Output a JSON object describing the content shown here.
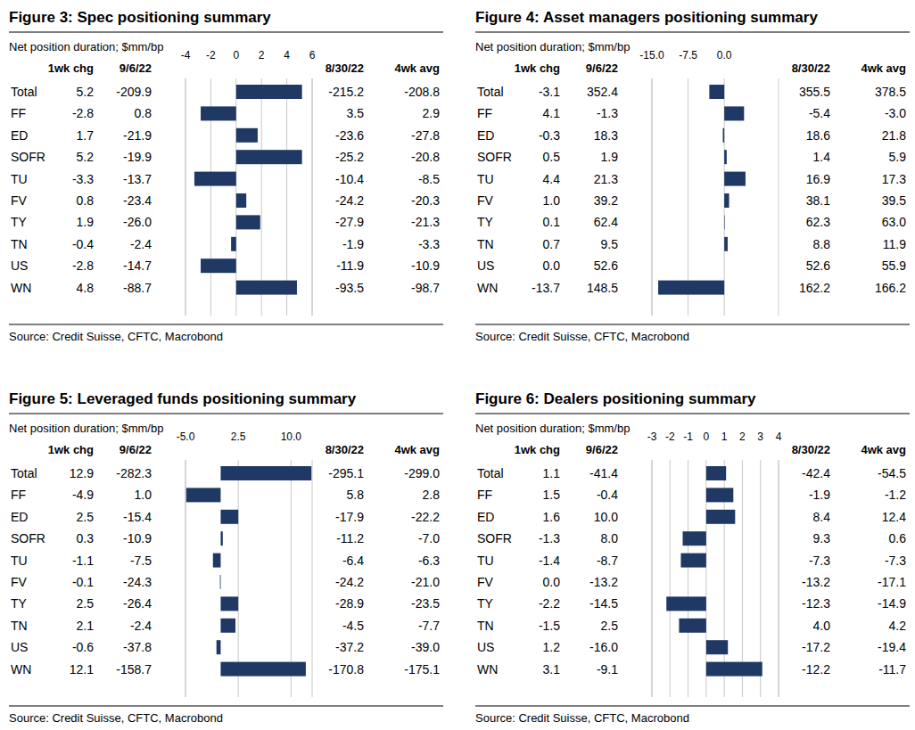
{
  "chart_data": [
    {
      "type": "bar",
      "orientation": "horizontal",
      "title": "Figure 3: Spec positioning summary",
      "subtitle": "Net position duration; $mm/bp",
      "source": "Source: Credit Suisse, CFTC, Macrobond",
      "value_header": "1wk chg",
      "color": "#203864",
      "grid": true,
      "categories": [
        "Total",
        "FF",
        "ED",
        "SOFR",
        "TU",
        "FV",
        "TY",
        "TN",
        "US",
        "WN"
      ],
      "values": [
        5.2,
        -2.8,
        1.7,
        5.2,
        -3.3,
        0.8,
        1.9,
        -0.4,
        -2.8,
        4.8
      ],
      "xlim": [
        -4,
        6
      ],
      "xticks": [
        -4,
        -2,
        0,
        2,
        4,
        6
      ],
      "columns": [
        {
          "name": "9/6/22",
          "values": [
            -209.9,
            0.8,
            -21.9,
            -19.9,
            -13.7,
            -23.4,
            -26.0,
            -2.4,
            -14.7,
            -88.7
          ]
        },
        {
          "name": "8/30/22",
          "values": [
            -215.2,
            3.5,
            -23.6,
            -25.2,
            -10.4,
            -24.2,
            -27.9,
            -1.9,
            -11.9,
            -93.5
          ]
        },
        {
          "name": "4wk avg",
          "values": [
            -208.8,
            2.9,
            -27.8,
            -20.8,
            -8.5,
            -20.3,
            -21.3,
            -3.3,
            -10.9,
            -98.7
          ]
        }
      ]
    },
    {
      "type": "bar",
      "orientation": "horizontal",
      "title": "Figure 4: Asset managers positioning summary",
      "subtitle": "Net position duration; $mm/bp",
      "source": "Source: Credit Suisse, CFTC, Macrobond",
      "value_header": "1wk chg",
      "color": "#203864",
      "grid": true,
      "categories": [
        "Total",
        "FF",
        "ED",
        "SOFR",
        "TU",
        "FV",
        "TY",
        "TN",
        "US",
        "WN"
      ],
      "values": [
        -3.1,
        4.1,
        -0.3,
        0.5,
        4.4,
        1.0,
        0.1,
        0.7,
        0.0,
        -13.7
      ],
      "xlim": [
        -15,
        11.25
      ],
      "xticks": [
        {
          "value": -15,
          "label": "-15.0"
        },
        {
          "value": -7.5,
          "label": "-7.5"
        },
        {
          "value": 0,
          "label": "0.0"
        }
      ],
      "columns": [
        {
          "name": "9/6/22",
          "values": [
            352.4,
            -1.3,
            18.3,
            1.9,
            21.3,
            39.2,
            62.4,
            9.5,
            52.6,
            148.5
          ]
        },
        {
          "name": "8/30/22",
          "values": [
            355.5,
            -5.4,
            18.6,
            1.4,
            16.9,
            38.1,
            62.3,
            8.8,
            52.6,
            162.2
          ]
        },
        {
          "name": "4wk avg",
          "values": [
            378.5,
            -3.0,
            21.8,
            5.9,
            17.3,
            39.5,
            63.0,
            11.9,
            55.9,
            166.2
          ]
        }
      ]
    },
    {
      "type": "bar",
      "orientation": "horizontal",
      "title": "Figure 5: Leveraged funds positioning summary",
      "subtitle": "Net position duration; $mm/bp",
      "source": "Source: Credit Suisse, CFTC, Macrobond",
      "value_header": "1wk chg",
      "color": "#203864",
      "grid": true,
      "categories": [
        "Total",
        "FF",
        "ED",
        "SOFR",
        "TU",
        "FV",
        "TY",
        "TN",
        "US",
        "WN"
      ],
      "values": [
        12.9,
        -4.9,
        2.5,
        0.3,
        -1.1,
        -0.1,
        2.5,
        2.1,
        -0.6,
        12.1
      ],
      "xlim": [
        -5,
        13
      ],
      "xticks": [
        {
          "value": -5,
          "label": "-5.0"
        },
        2.5,
        {
          "value": 10,
          "label": "10.0"
        }
      ],
      "columns": [
        {
          "name": "9/6/22",
          "values": [
            -282.3,
            1.0,
            -15.4,
            -10.9,
            -7.5,
            -24.3,
            -26.4,
            -2.4,
            -37.8,
            -158.7
          ]
        },
        {
          "name": "8/30/22",
          "values": [
            -295.1,
            5.8,
            -17.9,
            -11.2,
            -6.4,
            -24.2,
            -28.9,
            -4.5,
            -37.2,
            -170.8
          ]
        },
        {
          "name": "4wk avg",
          "values": [
            -299.0,
            2.8,
            -22.2,
            -7.0,
            -6.3,
            -21.0,
            -23.5,
            -7.7,
            -39.0,
            -175.1
          ]
        }
      ]
    },
    {
      "type": "bar",
      "orientation": "horizontal",
      "title": "Figure 6: Dealers positioning summary",
      "subtitle": "Net position duration; $mm/bp",
      "source": "Source: Credit Suisse, CFTC, Macrobond",
      "value_header": "1wk chg",
      "color": "#203864",
      "grid": true,
      "categories": [
        "Total",
        "FF",
        "ED",
        "SOFR",
        "TU",
        "FV",
        "TY",
        "TN",
        "US",
        "WN"
      ],
      "values": [
        1.1,
        1.5,
        1.6,
        -1.3,
        -1.4,
        0.0,
        -2.2,
        -1.5,
        1.2,
        3.1
      ],
      "xlim": [
        -3,
        4
      ],
      "xticks": [
        -3,
        -2,
        -1,
        0,
        1,
        2,
        3,
        4
      ],
      "columns": [
        {
          "name": "9/6/22",
          "values": [
            -41.4,
            -0.4,
            10.0,
            8.0,
            -8.7,
            -13.2,
            -14.5,
            2.5,
            -16.0,
            -9.1
          ]
        },
        {
          "name": "8/30/22",
          "values": [
            -42.4,
            -1.9,
            8.4,
            9.3,
            -7.3,
            -13.2,
            -12.3,
            4.0,
            -17.2,
            -12.2
          ]
        },
        {
          "name": "4wk avg",
          "values": [
            -54.5,
            -1.2,
            12.4,
            0.6,
            -7.3,
            -17.1,
            -14.9,
            4.2,
            -19.4,
            -11.7
          ]
        }
      ]
    }
  ]
}
